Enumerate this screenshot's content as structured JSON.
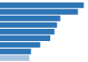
{
  "chart_data": {
    "type": "bar",
    "orientation": "horizontal",
    "categories": [
      null,
      null,
      null,
      null,
      null,
      null,
      null,
      null,
      null
    ],
    "values": [
      100,
      93,
      72,
      68,
      65,
      60,
      48,
      37,
      35
    ],
    "colors": [
      "#2e75b6",
      "#2e75b6",
      "#2e75b6",
      "#2e75b6",
      "#2e75b6",
      "#2e75b6",
      "#2e75b6",
      "#2e75b6",
      "#a8c4e0"
    ],
    "xlim": [
      0,
      105
    ],
    "tick_labels": false,
    "grid": false
  }
}
